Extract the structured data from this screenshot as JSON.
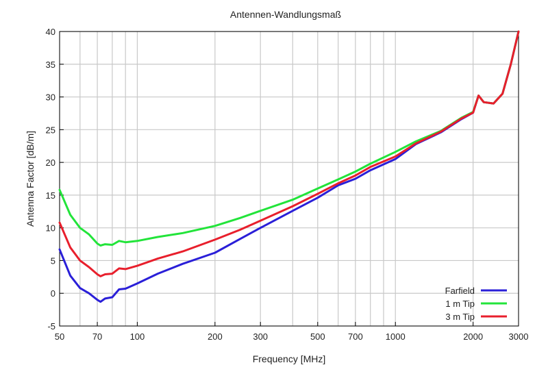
{
  "chart_data": {
    "type": "line",
    "title": "Antennen-Wandlungsmaß",
    "xlabel": "Frequency [MHz]",
    "ylabel": "Antenna Factor [dB/m]",
    "x_scale": "log",
    "xlim": [
      50,
      3000
    ],
    "ylim": [
      -5,
      40
    ],
    "x_ticks": [
      50,
      70,
      100,
      200,
      300,
      500,
      700,
      1000,
      2000,
      3000
    ],
    "x_tick_labels": [
      "50",
      "70",
      "100",
      "200",
      "300",
      "500",
      "700",
      "1000",
      "2000",
      "3000"
    ],
    "x_gridlines": [
      50,
      60,
      70,
      80,
      90,
      100,
      200,
      300,
      400,
      500,
      600,
      700,
      800,
      900,
      1000,
      2000,
      3000
    ],
    "y_ticks": [
      -5,
      0,
      5,
      10,
      15,
      20,
      25,
      30,
      35,
      40
    ],
    "y_tick_labels": [
      "-5",
      "0",
      "5",
      "10",
      "15",
      "20",
      "25",
      "30",
      "35",
      "40"
    ],
    "grid": true,
    "legend_position": "bottom-right",
    "series": [
      {
        "name": "Farfield",
        "color": "#2a1fd8",
        "x": [
          50,
          55,
          60,
          65,
          70,
          72,
          75,
          80,
          85,
          90,
          100,
          120,
          150,
          200,
          250,
          300,
          400,
          500,
          600,
          700,
          800,
          1000,
          1200,
          1500,
          1800,
          2000,
          2100,
          2200,
          2400,
          2600,
          2800,
          3000
        ],
        "y": [
          6.7,
          2.7,
          0.8,
          0.0,
          -1.0,
          -1.3,
          -0.8,
          -0.6,
          0.6,
          0.7,
          1.5,
          3.0,
          4.5,
          6.2,
          8.3,
          10.0,
          12.6,
          14.6,
          16.5,
          17.5,
          18.8,
          20.5,
          22.8,
          24.6,
          26.6,
          27.6,
          30.2,
          29.2,
          29.0,
          30.5,
          35.0,
          40.0
        ]
      },
      {
        "name": "1 m Tip",
        "color": "#22e43a",
        "x": [
          50,
          55,
          60,
          65,
          70,
          72,
          75,
          80,
          85,
          90,
          100,
          120,
          150,
          200,
          250,
          300,
          400,
          500,
          600,
          700,
          800,
          1000,
          1200,
          1500,
          1800,
          2000,
          2100,
          2200,
          2400,
          2600,
          2800,
          3000
        ],
        "y": [
          15.8,
          12.0,
          10.0,
          9.0,
          7.6,
          7.3,
          7.5,
          7.4,
          8.0,
          7.8,
          8.0,
          8.6,
          9.2,
          10.3,
          11.5,
          12.6,
          14.3,
          16.0,
          17.4,
          18.6,
          19.8,
          21.6,
          23.2,
          24.8,
          26.8,
          27.7,
          30.2,
          29.2,
          29.0,
          30.5,
          35.0,
          40.0
        ]
      },
      {
        "name": "3 m Tip",
        "color": "#e81f2c",
        "x": [
          50,
          55,
          60,
          65,
          70,
          72,
          75,
          80,
          85,
          90,
          100,
          120,
          150,
          200,
          250,
          300,
          400,
          500,
          600,
          700,
          800,
          1000,
          1200,
          1500,
          1800,
          2000,
          2100,
          2200,
          2400,
          2600,
          2800,
          3000
        ],
        "y": [
          10.8,
          7.0,
          5.0,
          4.0,
          2.9,
          2.6,
          2.9,
          3.0,
          3.8,
          3.7,
          4.2,
          5.3,
          6.4,
          8.2,
          9.7,
          11.1,
          13.3,
          15.2,
          16.8,
          18.0,
          19.3,
          20.9,
          22.9,
          24.7,
          26.7,
          27.6,
          30.2,
          29.2,
          29.0,
          30.5,
          35.0,
          40.0
        ]
      }
    ]
  }
}
